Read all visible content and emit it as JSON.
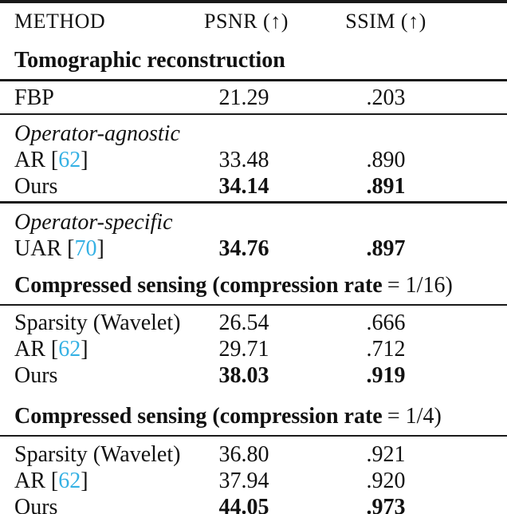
{
  "colors": {
    "background": "#ffffff",
    "text": "#111111",
    "rule": "#1a1a1a",
    "cite_link": "#35b1e4"
  },
  "header": {
    "method": "METHOD",
    "psnr": "PSNR (↑)",
    "ssim": "SSIM (↑)"
  },
  "sections": [
    {
      "title": "Tomographic reconstruction",
      "blocks": [
        {
          "rows": [
            {
              "method": "FBP",
              "psnr": "21.29",
              "ssim": ".203"
            }
          ]
        },
        {
          "subtitle": "Operator-agnostic",
          "rows": [
            {
              "m1": "AR [",
              "cite": "62",
              "m2": "]",
              "psnr": "33.48",
              "ssim": ".890"
            },
            {
              "method": "Ours",
              "psnr": "34.14",
              "ssim": ".891"
            }
          ]
        },
        {
          "subtitle": "Operator-specific",
          "rows": [
            {
              "m1": "UAR [",
              "cite": "70",
              "m2": "]",
              "psnr": "34.76",
              "ssim": ".897"
            }
          ]
        }
      ]
    },
    {
      "title_main": "Compressed sensing (compression rate",
      "title_math": "= 1/16)",
      "rows": [
        {
          "method": "Sparsity (Wavelet)",
          "psnr": "26.54",
          "ssim": ".666"
        },
        {
          "m1": "AR [",
          "cite": "62",
          "m2": "]",
          "psnr": "29.71",
          "ssim": ".712"
        },
        {
          "method": "Ours",
          "psnr": "38.03",
          "ssim": ".919"
        }
      ]
    },
    {
      "title_main": "Compressed sensing (compression rate",
      "title_math": "= 1/4)",
      "rows": [
        {
          "method": "Sparsity (Wavelet)",
          "psnr": "36.80",
          "ssim": ".921"
        },
        {
          "m1": "AR [",
          "cite": "62",
          "m2": "]",
          "psnr": "37.94",
          "ssim": ".920"
        },
        {
          "method": "Ours",
          "psnr": "44.05",
          "ssim": ".973"
        }
      ]
    }
  ]
}
